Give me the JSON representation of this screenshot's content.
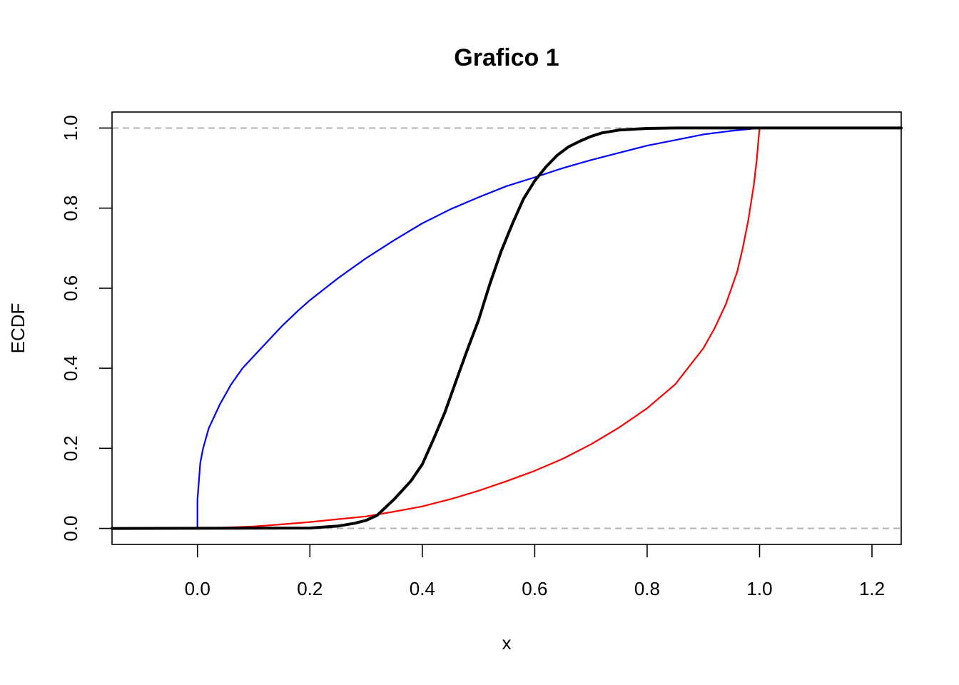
{
  "chart_data": {
    "type": "line",
    "title": "Grafico 1",
    "xlabel": "x",
    "ylabel": "ECDF",
    "xlim": [
      -0.152,
      1.252
    ],
    "ylim": [
      -0.04,
      1.04
    ],
    "xticks": [
      0.0,
      0.2,
      0.4,
      0.6,
      0.8,
      1.0,
      1.2
    ],
    "yticks": [
      0.0,
      0.2,
      0.4,
      0.6,
      0.8,
      1.0
    ],
    "xtick_labels": [
      "0.0",
      "0.2",
      "0.4",
      "0.6",
      "0.8",
      "1.0",
      "1.2"
    ],
    "ytick_labels": [
      "0.0",
      "0.2",
      "0.4",
      "0.6",
      "0.8",
      "1.0"
    ],
    "reference_lines": [
      {
        "y": 0.0,
        "style": "dashed",
        "color": "#b3b3b3"
      },
      {
        "y": 1.0,
        "style": "dashed",
        "color": "#b3b3b3"
      }
    ],
    "grid": false,
    "series": [
      {
        "color": "#0000ff",
        "x": [
          -0.152,
          0.0,
          0.0,
          0.005,
          0.01,
          0.02,
          0.03,
          0.04,
          0.06,
          0.08,
          0.1,
          0.12,
          0.15,
          0.18,
          0.2,
          0.25,
          0.3,
          0.35,
          0.4,
          0.45,
          0.5,
          0.55,
          0.6,
          0.65,
          0.7,
          0.75,
          0.8,
          0.85,
          0.9,
          0.95,
          1.0,
          1.252
        ],
        "y": [
          0.0,
          0.0,
          0.071,
          0.164,
          0.2,
          0.25,
          0.28,
          0.31,
          0.36,
          0.4,
          0.43,
          0.46,
          0.505,
          0.545,
          0.57,
          0.625,
          0.675,
          0.72,
          0.762,
          0.797,
          0.827,
          0.855,
          0.877,
          0.9,
          0.92,
          0.938,
          0.956,
          0.97,
          0.984,
          0.993,
          1.0,
          1.0
        ]
      },
      {
        "color": "#ff0000",
        "x": [
          -0.152,
          0.0,
          0.05,
          0.1,
          0.15,
          0.2,
          0.25,
          0.3,
          0.35,
          0.4,
          0.45,
          0.5,
          0.55,
          0.6,
          0.65,
          0.7,
          0.75,
          0.8,
          0.85,
          0.9,
          0.92,
          0.94,
          0.96,
          0.97,
          0.98,
          0.99,
          0.995,
          0.998,
          1.0,
          1.252
        ],
        "y": [
          0.0,
          0.0,
          0.002,
          0.005,
          0.01,
          0.016,
          0.023,
          0.03,
          0.042,
          0.055,
          0.073,
          0.094,
          0.118,
          0.144,
          0.174,
          0.21,
          0.252,
          0.3,
          0.36,
          0.45,
          0.5,
          0.56,
          0.64,
          0.7,
          0.77,
          0.86,
          0.92,
          0.97,
          1.0,
          1.0
        ]
      },
      {
        "color": "#000000",
        "x": [
          -0.152,
          0.2,
          0.25,
          0.28,
          0.3,
          0.32,
          0.35,
          0.38,
          0.4,
          0.42,
          0.44,
          0.46,
          0.48,
          0.5,
          0.52,
          0.54,
          0.56,
          0.58,
          0.6,
          0.62,
          0.64,
          0.66,
          0.68,
          0.7,
          0.72,
          0.75,
          0.8,
          0.85,
          1.252
        ],
        "y": [
          0.0,
          0.001,
          0.006,
          0.013,
          0.02,
          0.033,
          0.073,
          0.119,
          0.16,
          0.223,
          0.289,
          0.368,
          0.446,
          0.52,
          0.61,
          0.691,
          0.76,
          0.823,
          0.868,
          0.903,
          0.932,
          0.953,
          0.967,
          0.979,
          0.988,
          0.995,
          0.999,
          1.0,
          1.0
        ]
      }
    ]
  }
}
